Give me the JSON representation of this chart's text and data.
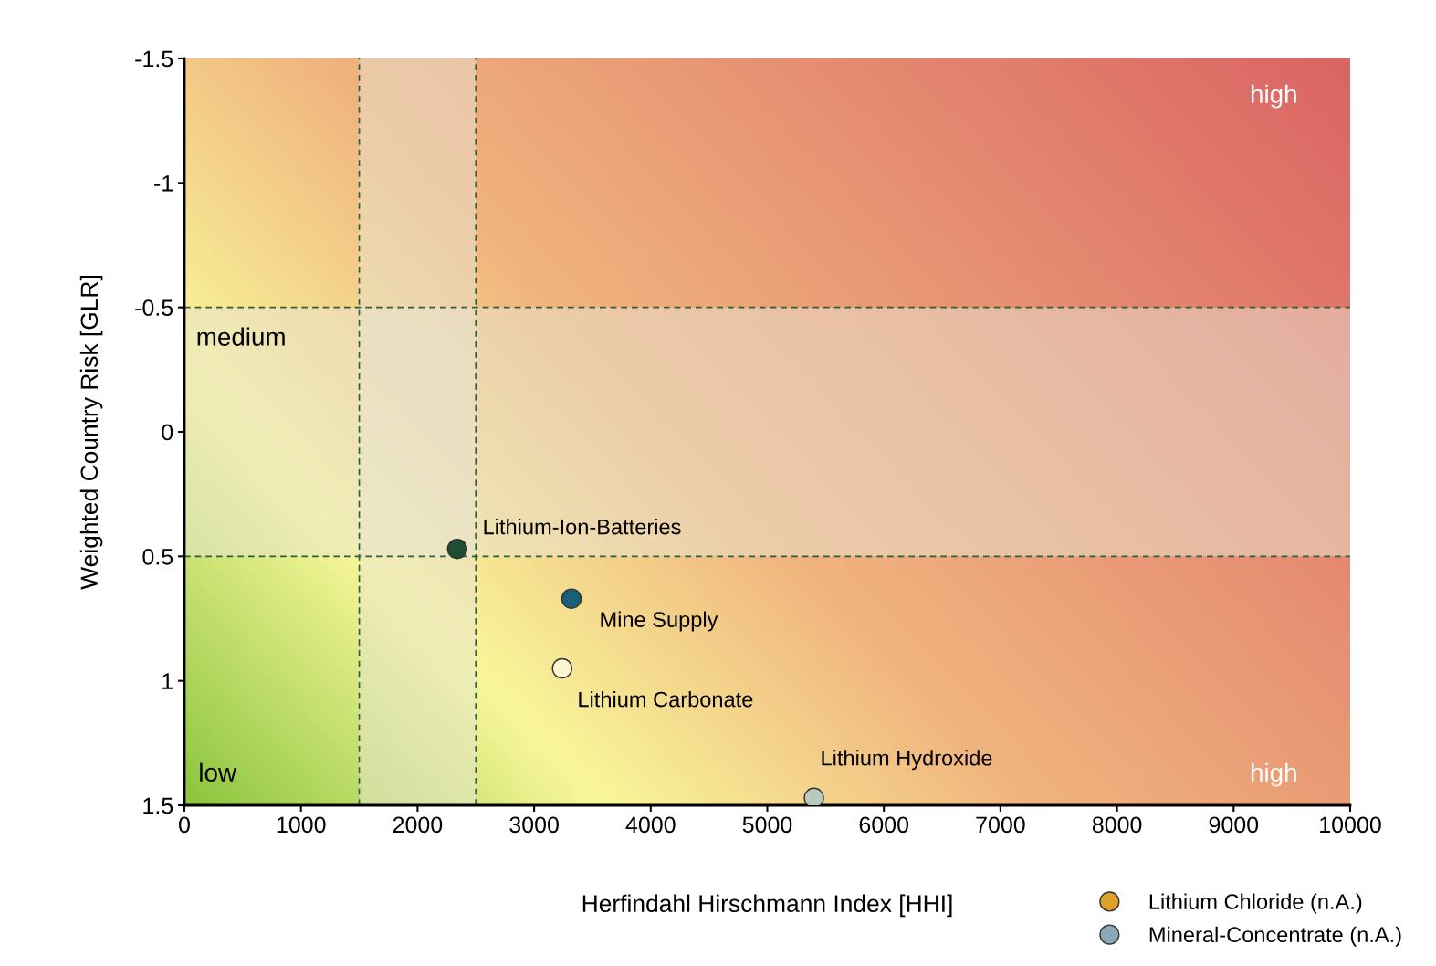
{
  "chart_data": {
    "type": "scatter",
    "xlabel": "Herfindahl Hirschmann Index [HHI]",
    "ylabel": "Weighted Country Risk [GLR]",
    "xlim": [
      0,
      10000
    ],
    "xticks": [
      0,
      1000,
      2000,
      3000,
      4000,
      5000,
      6000,
      7000,
      8000,
      9000,
      10000
    ],
    "ylim": [
      1.5,
      -1.5
    ],
    "yticks": [
      -1.5,
      -1,
      -0.5,
      0,
      0.5,
      1,
      1.5
    ],
    "grid": false,
    "marker": "circle",
    "legend": "bottom right",
    "series": [
      {
        "name": "Lithium-Ion-Batteries",
        "color": "#1f4d33",
        "x": [
          2340
        ],
        "values": [
          0.47
        ]
      },
      {
        "name": "Mine Supply",
        "color": "#17607a",
        "x": [
          3320
        ],
        "values": [
          0.67
        ]
      },
      {
        "name": "Lithium Carbonate",
        "color": "#fdf6d2",
        "x": [
          3240
        ],
        "values": [
          0.95
        ]
      },
      {
        "name": "Lithium Hydroxide",
        "color": "#b8c9bd",
        "x": [
          5400
        ],
        "values": [
          1.47
        ]
      },
      {
        "name": "Lithium Chloride (n.A.)",
        "color": "#e0a12c"
      },
      {
        "name": "Mineral-Concentrate (n.A.)",
        "color": "#8da9b6"
      }
    ],
    "ref_lines": [
      {
        "axis": "x",
        "value": 1500,
        "color": "#2e5e3a",
        "line_style": "dashed"
      },
      {
        "axis": "x",
        "value": 2500,
        "color": "#2e5e3a",
        "line_style": "dashed"
      },
      {
        "axis": "y",
        "value": -0.5,
        "color": "#2e5e3a",
        "line_style": "dashed"
      },
      {
        "axis": "y",
        "value": 0.5,
        "color": "#2e5e3a",
        "line_style": "dashed"
      }
    ],
    "bands": [
      {
        "axis": "x",
        "from": 1500,
        "to": 2500,
        "color": "#e8e4d4"
      },
      {
        "axis": "y",
        "from": -0.5,
        "to": 0.5,
        "color": "#e8e4d4"
      }
    ],
    "annotations": [
      "high",
      "medium",
      "low",
      "high"
    ]
  }
}
